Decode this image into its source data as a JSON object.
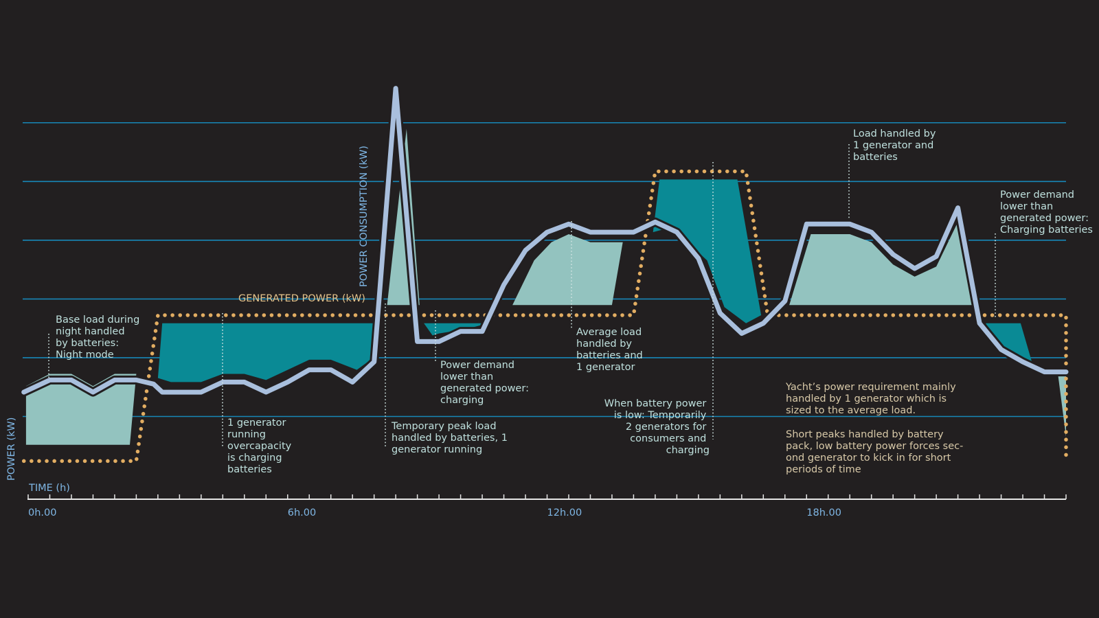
{
  "colors": {
    "background": "#221f20",
    "grid": "#1787b8",
    "consumption_line": "#a9bfdd",
    "generated_dots": "#e2ad62",
    "surplus_fill": "#0a8a95",
    "battery_fill": "#93c3bf",
    "annotation_text": "#bfe0dd",
    "note_text": "#d8c9a8",
    "axis_text": "#7fb6e4"
  },
  "chart_data": {
    "type": "line",
    "title": "",
    "xlabel": "TIME (h)",
    "ylabel": "POWER (kW)",
    "x_unit": "hours",
    "xlim": [
      0,
      24
    ],
    "ylim": [
      0,
      100
    ],
    "grid": true,
    "x_ticks": [
      {
        "x": 0,
        "label": "0h.00"
      },
      {
        "x": 6,
        "label": "6h.00"
      },
      {
        "x": 12,
        "label": "12h.00"
      },
      {
        "x": 18,
        "label": "18h.00"
      }
    ],
    "minor_tick_step": 0.5,
    "grid_levels": [
      15,
      29.5,
      44,
      58.5,
      73,
      87.5
    ],
    "series": [
      {
        "name": "POWER CONSUMPTION (kW)",
        "style": "solid-outlined",
        "points": [
          [
            -0.1,
            21
          ],
          [
            0.5,
            24
          ],
          [
            1.0,
            24
          ],
          [
            1.5,
            21
          ],
          [
            2.0,
            24
          ],
          [
            2.5,
            24
          ],
          [
            2.9,
            23
          ],
          [
            3.1,
            21
          ],
          [
            4.0,
            21
          ],
          [
            4.5,
            23.5
          ],
          [
            5.0,
            23.5
          ],
          [
            5.5,
            21
          ],
          [
            6.0,
            23.5
          ],
          [
            6.5,
            26.5
          ],
          [
            7.0,
            26.5
          ],
          [
            7.5,
            23.5
          ],
          [
            8.0,
            28.5
          ],
          [
            8.5,
            96
          ],
          [
            9.0,
            33.5
          ],
          [
            9.5,
            33.5
          ],
          [
            10.0,
            36
          ],
          [
            10.5,
            36
          ],
          [
            11.0,
            47.5
          ],
          [
            11.5,
            56
          ],
          [
            12.0,
            60.5
          ],
          [
            12.5,
            62.5
          ],
          [
            13.0,
            60.5
          ],
          [
            14.0,
            60.5
          ],
          [
            14.5,
            63
          ],
          [
            15.0,
            60.5
          ],
          [
            15.5,
            54
          ],
          [
            16.0,
            40.5
          ],
          [
            16.5,
            35.5
          ],
          [
            17.0,
            38
          ],
          [
            17.5,
            43.5
          ],
          [
            18.0,
            62.5
          ],
          [
            19.0,
            62.5
          ],
          [
            19.5,
            60.5
          ],
          [
            20.0,
            55
          ],
          [
            20.5,
            51.5
          ],
          [
            21.0,
            54.5
          ],
          [
            21.5,
            66.5
          ],
          [
            22.0,
            38
          ],
          [
            22.5,
            31.5
          ],
          [
            23.0,
            28.5
          ],
          [
            23.5,
            26
          ],
          [
            24.0,
            26
          ]
        ]
      },
      {
        "name": "GENERATED POWER (kW)",
        "style": "dotted",
        "points": [
          [
            -0.1,
            4
          ],
          [
            2.5,
            4
          ],
          [
            3.0,
            40
          ],
          [
            14.0,
            40
          ],
          [
            14.5,
            75.5
          ],
          [
            16.6,
            75.5
          ],
          [
            17.1,
            40
          ],
          [
            24.0,
            40
          ],
          [
            24.0,
            4
          ]
        ]
      }
    ],
    "regions": [
      {
        "kind": "battery",
        "polygon": [
          [
            -0.05,
            8
          ],
          [
            -0.05,
            22.5
          ],
          [
            0.5,
            25.5
          ],
          [
            1.0,
            25.5
          ],
          [
            1.5,
            22.5
          ],
          [
            2.0,
            25.5
          ],
          [
            2.5,
            25.5
          ],
          [
            2.35,
            8
          ]
        ]
      },
      {
        "kind": "surplus",
        "polygon": [
          [
            3.1,
            38
          ],
          [
            8.05,
            38
          ],
          [
            8.05,
            30
          ],
          [
            7.6,
            26.5
          ],
          [
            7.0,
            29
          ],
          [
            6.5,
            29
          ],
          [
            6.0,
            26.5
          ],
          [
            5.5,
            24
          ],
          [
            5.0,
            25.5
          ],
          [
            4.5,
            25.5
          ],
          [
            4.0,
            23.5
          ],
          [
            3.3,
            23.5
          ],
          [
            3.0,
            24.5
          ]
        ]
      },
      {
        "kind": "battery",
        "polygon": [
          [
            8.3,
            42.5
          ],
          [
            8.75,
            86
          ],
          [
            9.05,
            42.5
          ]
        ]
      },
      {
        "kind": "surplus",
        "polygon": [
          [
            9.15,
            38
          ],
          [
            10.65,
            38
          ],
          [
            10.1,
            36.5
          ],
          [
            9.5,
            35.5
          ],
          [
            9.35,
            35
          ]
        ]
      },
      {
        "kind": "battery",
        "polygon": [
          [
            11.2,
            42.5
          ],
          [
            11.7,
            53.5
          ],
          [
            12.1,
            58
          ],
          [
            12.5,
            60
          ],
          [
            13.0,
            58
          ],
          [
            13.75,
            58
          ],
          [
            13.5,
            42.5
          ]
        ]
      },
      {
        "kind": "surplus",
        "polygon": [
          [
            14.6,
            73.5
          ],
          [
            16.4,
            73.5
          ],
          [
            16.95,
            40
          ],
          [
            16.6,
            38
          ],
          [
            16.1,
            42
          ],
          [
            15.7,
            53.5
          ],
          [
            15.25,
            58
          ],
          [
            14.8,
            61.5
          ],
          [
            14.45,
            60.5
          ]
        ]
      },
      {
        "kind": "battery",
        "polygon": [
          [
            17.6,
            42.5
          ],
          [
            18.1,
            60
          ],
          [
            19.0,
            60
          ],
          [
            19.5,
            58
          ],
          [
            20.0,
            52.5
          ],
          [
            20.5,
            49.5
          ],
          [
            21.0,
            52
          ],
          [
            21.5,
            63
          ],
          [
            22.0,
            42.5
          ]
        ]
      },
      {
        "kind": "surplus",
        "polygon": [
          [
            22.15,
            38
          ],
          [
            22.95,
            38
          ],
          [
            23.25,
            27
          ],
          [
            23.0,
            29.5
          ],
          [
            22.5,
            32.5
          ],
          [
            22.1,
            36
          ]
        ]
      },
      {
        "kind": "battery",
        "polygon": [
          [
            24.0,
            26.5
          ],
          [
            24.0,
            10
          ],
          [
            23.8,
            26.5
          ]
        ]
      }
    ]
  },
  "annotations": [
    {
      "id": "night-mode",
      "lines": [
        "Base load during",
        "night handled",
        "by batteries:",
        "Night mode"
      ]
    },
    {
      "id": "one-generator-overcapacity",
      "lines": [
        "1 generator",
        "running",
        "overcapacity",
        "is charging",
        "batteries"
      ]
    },
    {
      "id": "temporary-peak",
      "lines": [
        "Temporary peak load",
        "handled by batteries, 1",
        "generator running"
      ]
    },
    {
      "id": "demand-lower-charging",
      "lines": [
        "Power demand",
        "lower than",
        "generated power:",
        "charging"
      ]
    },
    {
      "id": "average-load",
      "lines": [
        "Average load",
        "handled by",
        "batteries and",
        "1 generator"
      ]
    },
    {
      "id": "battery-low",
      "lines": [
        "When battery power",
        "is low: Temporarily",
        "2 generators for",
        "consumers and",
        "charging"
      ]
    },
    {
      "id": "load-one-generator",
      "lines": [
        "Load handled by",
        "1 generator and",
        "batteries"
      ]
    },
    {
      "id": "demand-lower-batteries",
      "lines": [
        "Power demand",
        "lower than",
        "generated power:",
        "Charging batteries"
      ]
    }
  ],
  "notes": [
    {
      "id": "note-requirement",
      "lines": [
        "Yacht’s power requirement mainly",
        "handled by 1 generator which is",
        "sized to the average load."
      ]
    },
    {
      "id": "note-peaks",
      "lines": [
        "Short peaks handled by battery",
        "pack, low battery power forces sec-",
        "ond generator to kick in for short",
        "periods of time"
      ]
    }
  ]
}
